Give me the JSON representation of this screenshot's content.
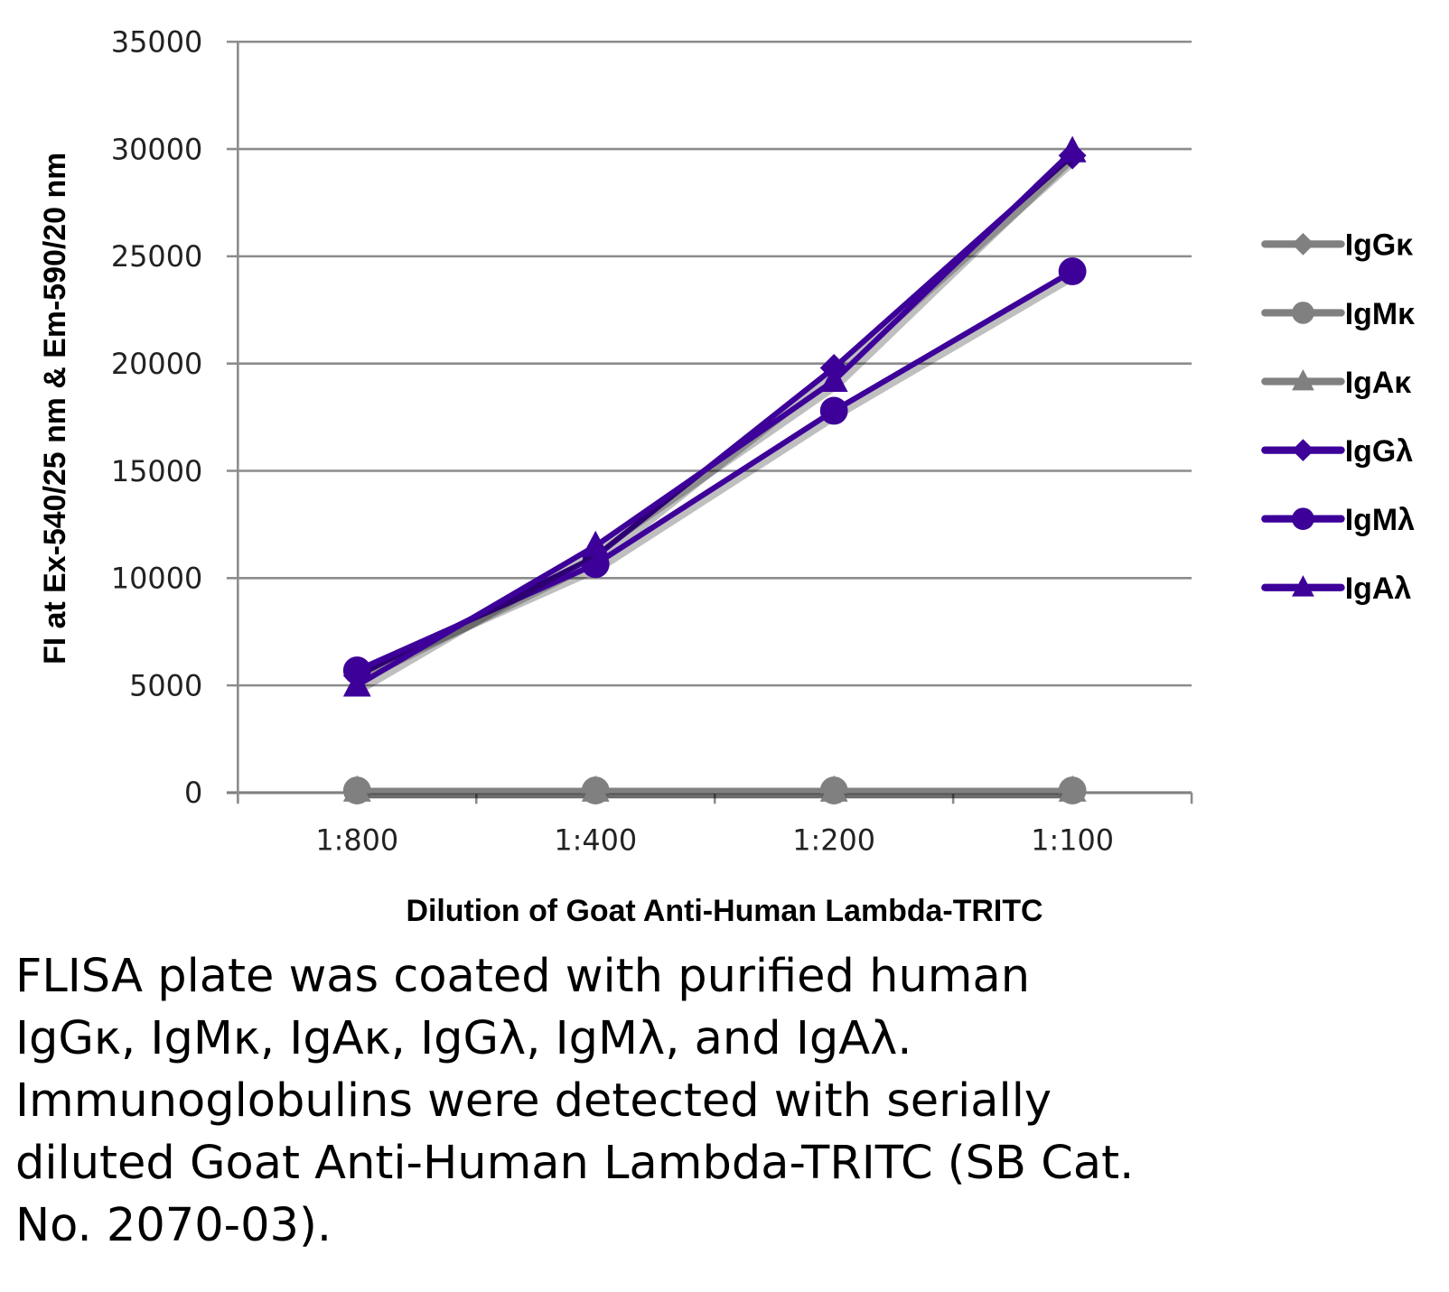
{
  "chart_data": {
    "type": "line",
    "title": "",
    "xlabel": "Dilution of Goat Anti-Human Lambda-TRITC",
    "ylabel": "FI at Ex-540/25 nm & Em-590/20 nm",
    "categories": [
      "1:800",
      "1:400",
      "1:200",
      "1:100"
    ],
    "ylim": [
      0,
      35000
    ],
    "yticks": [
      0,
      5000,
      10000,
      15000,
      20000,
      25000,
      30000,
      35000
    ],
    "grid": true,
    "legend_position": "right",
    "series": [
      {
        "name": "IgGκ",
        "marker": "diamond",
        "color": "#808080",
        "values": [
          100,
          100,
          100,
          100
        ]
      },
      {
        "name": "IgMκ",
        "marker": "circle",
        "color": "#808080",
        "values": [
          100,
          100,
          100,
          100
        ]
      },
      {
        "name": "IgAκ",
        "marker": "triangle",
        "color": "#808080",
        "values": [
          100,
          100,
          100,
          100
        ]
      },
      {
        "name": "IgGλ",
        "marker": "diamond",
        "color": "#3d0099",
        "values": [
          5450,
          11000,
          19800,
          29700
        ]
      },
      {
        "name": "IgMλ",
        "marker": "circle",
        "color": "#3d0099",
        "values": [
          5700,
          10650,
          17800,
          24300
        ]
      },
      {
        "name": "IgAλ",
        "marker": "triangle",
        "color": "#3d0099",
        "values": [
          5000,
          11500,
          19200,
          29900
        ]
      }
    ]
  },
  "caption_lines": [
    "FLISA plate was coated with purified human",
    "IgGκ, IgMκ, IgAκ, IgGλ, IgMλ, and IgAλ.",
    "Immunoglobulins were detected with serially",
    "diluted Goat Anti-Human Lambda-TRITC (SB Cat.",
    "No. 2070-03)."
  ]
}
